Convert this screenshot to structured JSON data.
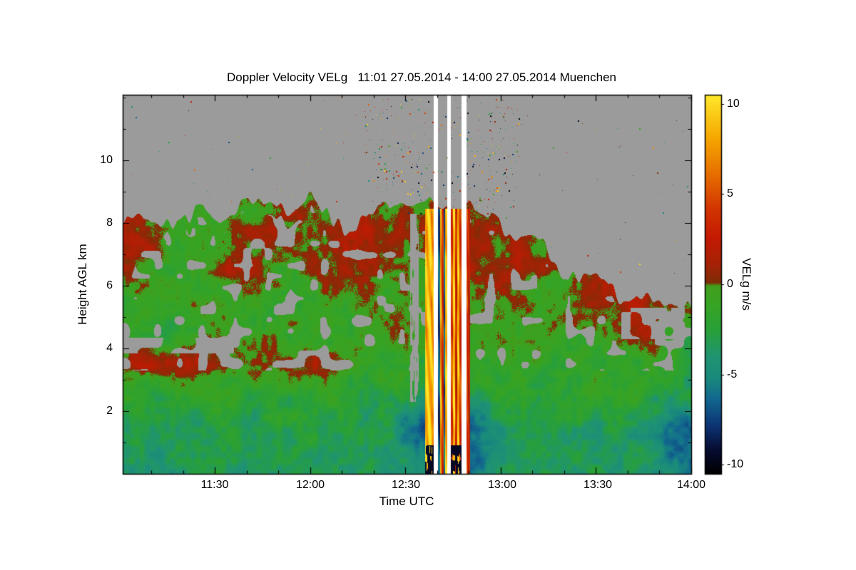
{
  "chart_data": {
    "type": "heatmap",
    "title": "Doppler Velocity VELg   11:01 27.05.2014 - 14:00 27.05.2014 Muenchen",
    "xlabel": "Time UTC",
    "ylabel": "Height AGL km",
    "colorbar_label": "VELg m/s",
    "x_range_minutes": [
      661,
      840
    ],
    "x_tick_minutes": [
      690,
      720,
      750,
      780,
      810,
      840
    ],
    "x_tick_labels": [
      "11:30",
      "12:00",
      "12:30",
      "13:00",
      "13:30",
      "14:00"
    ],
    "x_minor_step_min": 10,
    "y_range_km": [
      0,
      12.1
    ],
    "y_tick_km": [
      10,
      8,
      6,
      4,
      2
    ],
    "y_tick_labels": [
      "10",
      "8",
      "6",
      "4",
      "2"
    ],
    "value_range": [
      -10,
      10
    ],
    "colorbar_range": [
      -10.5,
      10.5
    ],
    "colorbar_tick_values": [
      10,
      5,
      0,
      -5,
      -10
    ],
    "colorbar_tick_labels": [
      "10",
      "5",
      "0",
      "-5",
      "-10"
    ],
    "no_data_color": "#9b9b9b",
    "missing_data_color": "#ffffff",
    "colormap_stops": [
      [
        -10.5,
        "#000000"
      ],
      [
        -9.2,
        "#070b30"
      ],
      [
        -7.8,
        "#0c3575"
      ],
      [
        -6.3,
        "#12698f"
      ],
      [
        -5.2,
        "#198a7c"
      ],
      [
        -4.0,
        "#1f9472"
      ],
      [
        -2.6,
        "#28a03a"
      ],
      [
        -1.2,
        "#36a424"
      ],
      [
        -0.08,
        "#429e1c"
      ],
      [
        0.08,
        "#7e2d08"
      ],
      [
        1.2,
        "#a82105"
      ],
      [
        2.6,
        "#c41a02"
      ],
      [
        4.2,
        "#d23501"
      ],
      [
        6.0,
        "#e66c00"
      ],
      [
        8.0,
        "#f5a400"
      ],
      [
        10.5,
        "#ffe92a"
      ]
    ],
    "grid": {
      "t_start_min": 661,
      "t_end_min": 840,
      "heights_km": [
        0.5,
        1.5,
        2.5,
        3.5,
        4.5,
        5.5,
        6.5,
        7.5,
        8.5,
        9.5,
        10.5,
        11.5
      ],
      "values": [
        [
          -3.5,
          -4.0,
          -3.8,
          -3.4,
          -3.0,
          -3.2,
          -3.4,
          -3.0,
          -3.2,
          -3.4,
          -3.2,
          -3.6,
          -5.0,
          -6.8,
          -6.2,
          -4.2,
          -3.6,
          -3.2,
          -3.2,
          -3.4,
          -3.6,
          -3.4,
          -4.8,
          -5.8
        ],
        [
          -3.4,
          -4.2,
          -4.0,
          -3.2,
          -2.8,
          -3.0,
          -3.2,
          -2.8,
          -3.0,
          -3.2,
          -3.4,
          -3.8,
          -5.8,
          -8.0,
          -7.2,
          -4.4,
          -3.4,
          -3.0,
          -3.0,
          -3.2,
          -3.4,
          -3.4,
          -5.4,
          -7.2
        ],
        [
          -1.8,
          -2.2,
          -1.8,
          -1.4,
          -1.6,
          -1.8,
          -1.6,
          -1.6,
          -1.8,
          -2.0,
          -2.0,
          -2.2,
          -2.8,
          -3.0,
          -2.8,
          -2.2,
          -2.0,
          -1.8,
          -2.0,
          -2.0,
          -2.2,
          -2.2,
          -2.6,
          -3.0
        ],
        [
          0.8,
          1.4,
          0.6,
          1.2,
          0.4,
          1.0,
          1.4,
          0.6,
          0.8,
          -0.6,
          -1.2,
          -1.4,
          -1.6,
          -1.2,
          -1.2,
          -1.6,
          -1.2,
          -1.6,
          -1.6,
          -1.4,
          -1.6,
          -1.8,
          -2.0,
          -2.2
        ],
        [
          -1.6,
          -1.4,
          -1.8,
          -1.4,
          -1.2,
          -1.0,
          -1.4,
          -1.6,
          -1.4,
          -1.8,
          -1.2,
          -0.4,
          -1.2,
          -1.6,
          -1.6,
          -1.2,
          -0.8,
          -0.6,
          -1.0,
          -0.6,
          0.4,
          0.8,
          -1.2,
          -1.8
        ],
        [
          -1.4,
          -1.0,
          -1.4,
          -1.2,
          -1.0,
          -1.4,
          -1.0,
          -1.0,
          -1.4,
          -1.0,
          -0.6,
          -1.0,
          -1.4,
          -1.0,
          -0.8,
          -0.4,
          0.2,
          -0.4,
          -0.8,
          0.6,
          1.6,
          1.2,
          0.4,
          -0.6
        ],
        [
          0.6,
          -0.4,
          -1.0,
          -0.6,
          0.6,
          1.0,
          -0.4,
          -0.8,
          0.6,
          1.2,
          0.6,
          -0.4,
          -0.8,
          0.8,
          1.2,
          1.6,
          0.6,
          -0.4,
          null,
          null,
          null,
          null,
          null,
          null
        ],
        [
          1.2,
          0.6,
          -0.6,
          -1.0,
          -0.4,
          0.6,
          1.2,
          0.6,
          -0.4,
          0.6,
          1.0,
          0.6,
          -0.4,
          1.2,
          1.0,
          0.6,
          0.4,
          null,
          null,
          null,
          null,
          null,
          null,
          null
        ],
        [
          null,
          null,
          null,
          null,
          null,
          -0.4,
          0.2,
          0.4,
          -0.2,
          null,
          0.2,
          null,
          -0.2,
          0.4,
          null,
          null,
          null,
          null,
          null,
          null,
          null,
          null,
          null,
          null
        ],
        [
          null,
          null,
          null,
          null,
          null,
          null,
          null,
          null,
          null,
          null,
          null,
          null,
          null,
          null,
          null,
          null,
          null,
          null,
          null,
          null,
          null,
          null,
          null,
          null
        ],
        [
          null,
          null,
          null,
          null,
          null,
          null,
          null,
          null,
          null,
          null,
          null,
          null,
          null,
          null,
          null,
          null,
          null,
          null,
          null,
          null,
          null,
          null,
          null,
          null
        ],
        [
          null,
          null,
          null,
          null,
          null,
          null,
          null,
          null,
          null,
          null,
          null,
          null,
          null,
          null,
          null,
          null,
          null,
          null,
          null,
          null,
          null,
          null,
          null,
          null
        ]
      ]
    },
    "cloud_top_km": [
      8.0,
      8.3,
      8.2,
      8.1,
      8.2,
      8.5,
      8.7,
      8.8,
      8.2,
      7.7,
      8.3,
      8.5,
      8.4,
      8.4,
      8.3,
      7.9,
      7.7,
      7.3,
      6.0,
      5.9,
      5.8,
      5.7,
      5.6,
      5.5
    ],
    "events": {
      "gray_smear": {
        "t0": 751.5,
        "t1": 754.2,
        "h0": 2.3,
        "h1": 8.3
      },
      "white_gap_columns": [
        {
          "t0": 759.0,
          "t1": 760.3
        },
        {
          "t0": 763.2,
          "t1": 764.3
        },
        {
          "t0": 767.7,
          "t1": 769.2
        }
      ],
      "precip_shafts": [
        {
          "t0": 756.2,
          "t1": 759.0,
          "top_km": 8.45,
          "values": [
            8.8,
            9.3,
            8.0
          ],
          "dark_bottom": true
        },
        {
          "t0": 760.3,
          "t1": 763.2,
          "top_km": 8.45,
          "values": [
            -7.0,
            8.5,
            3.5,
            -6.5,
            9.0
          ],
          "dark_bottom": false
        },
        {
          "t0": 764.3,
          "t1": 767.7,
          "top_km": 8.45,
          "values": [
            4.5,
            9.2,
            3.0,
            8.8,
            4.0
          ],
          "dark_bottom": true
        },
        {
          "t0": 769.2,
          "t1": 770.4,
          "top_km": 8.45,
          "values": [
            4.0,
            3.0,
            2.5
          ],
          "dark_bottom": false
        }
      ],
      "gray_patches": [
        {
          "t0": 661,
          "t1": 696,
          "h0": 3.85,
          "h1": 4.35,
          "thresh": 0.45
        },
        {
          "t0": 818,
          "t1": 838,
          "h0": 4.3,
          "h1": 5.3,
          "thresh": 0.42
        }
      ]
    },
    "speckles": {
      "dense": {
        "t0": 737,
        "t1": 786,
        "h0": 8.3,
        "h1": 12.05,
        "count": 350
      },
      "sparse": {
        "t0": 661,
        "t1": 840,
        "h0": 5.8,
        "h1": 12.05,
        "count": 150
      }
    }
  }
}
